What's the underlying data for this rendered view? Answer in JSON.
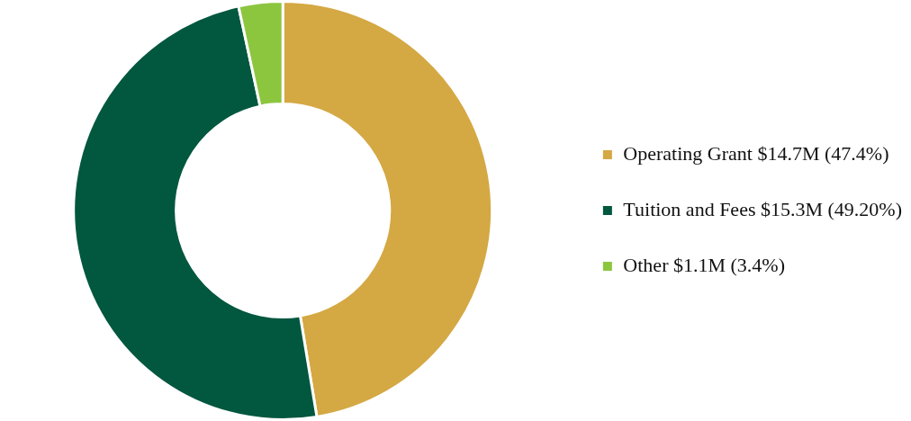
{
  "chart_data": {
    "type": "donut",
    "categories": [
      "Operating Grant $14.7M (47.4%)",
      "Tuition and Fees $15.3M (49.20%)",
      "Other $1.1M (3.4%)"
    ],
    "values": [
      47.4,
      49.2,
      3.4
    ],
    "colors": [
      "#d4a843",
      "#02573f",
      "#8cc63f"
    ],
    "legend": "right"
  }
}
